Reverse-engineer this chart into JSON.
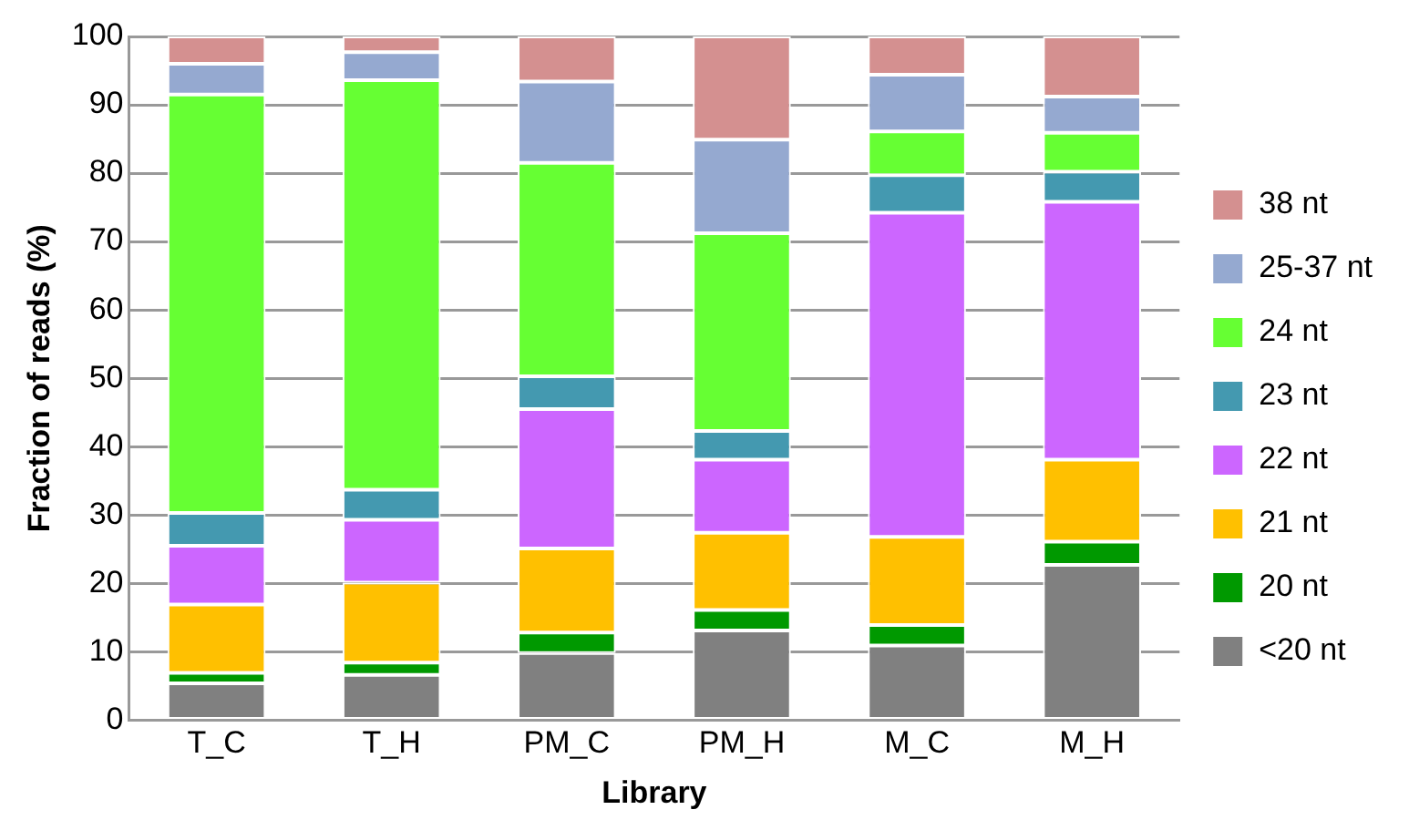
{
  "chart_data": {
    "type": "bar",
    "stacked": true,
    "xlabel": "Library",
    "ylabel": "Fraction of reads (%)",
    "categories": [
      "T_C",
      "T_H",
      "PM_C",
      "PM_H",
      "M_C",
      "M_H"
    ],
    "series": [
      {
        "name": "<20 nt",
        "color": "#808080",
        "values": [
          5.4,
          6.6,
          9.8,
          13.1,
          10.9,
          22.7
        ]
      },
      {
        "name": "20 nt",
        "color": "#009900",
        "values": [
          1.5,
          1.8,
          3.0,
          3.0,
          3.0,
          3.4
        ]
      },
      {
        "name": "21 nt",
        "color": "#ffc000",
        "values": [
          10.0,
          11.7,
          12.3,
          11.3,
          12.9,
          12.0
        ]
      },
      {
        "name": "22 nt",
        "color": "#cc66ff",
        "values": [
          8.6,
          9.2,
          20.4,
          10.7,
          47.4,
          37.7
        ]
      },
      {
        "name": "23 nt",
        "color": "#4499b0",
        "values": [
          4.8,
          4.4,
          4.8,
          4.2,
          5.5,
          4.4
        ]
      },
      {
        "name": "24 nt",
        "color": "#66ff33",
        "values": [
          61.2,
          59.9,
          31.2,
          28.9,
          6.4,
          5.7
        ]
      },
      {
        "name": "25-37 nt",
        "color": "#95a9d0",
        "values": [
          4.5,
          4.1,
          11.9,
          13.7,
          8.3,
          5.3
        ]
      },
      {
        "name": "38 nt",
        "color": "#d49090",
        "values": [
          4.0,
          2.3,
          6.6,
          15.1,
          5.6,
          8.8
        ]
      }
    ],
    "ylim": [
      0,
      100
    ],
    "yticks": [
      0,
      10,
      20,
      30,
      40,
      50,
      60,
      70,
      80,
      90,
      100
    ],
    "grid": "y",
    "legend": "right"
  }
}
